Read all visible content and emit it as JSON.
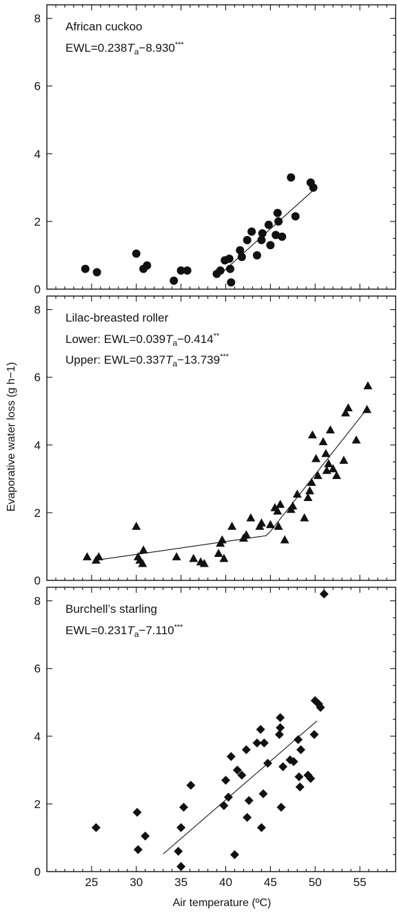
{
  "figure": {
    "xlabel": "Air temperature (ºC)",
    "ylabel": "Evaporative water loss (g h−1)"
  },
  "chart_data": [
    {
      "type": "scatter",
      "marker": "circle",
      "title": "African cuckoo",
      "annotations": [
        {
          "prefix": "EWL=0.238",
          "var": "T",
          "sub": "a",
          "suffix": "−8.930",
          "sig": "***"
        }
      ],
      "xlim": [
        20,
        59
      ],
      "ylim": [
        0,
        8.4
      ],
      "xticks": [
        25,
        30,
        35,
        40,
        45,
        50,
        55
      ],
      "yticks": [
        0,
        2,
        4,
        6,
        8
      ],
      "show_xticklabels": false,
      "points": [
        [
          24.3,
          0.6
        ],
        [
          25.6,
          0.5
        ],
        [
          30.0,
          1.05
        ],
        [
          30.8,
          0.6
        ],
        [
          31.2,
          0.7
        ],
        [
          34.2,
          0.25
        ],
        [
          35.0,
          0.55
        ],
        [
          35.7,
          0.55
        ],
        [
          39.0,
          0.45
        ],
        [
          39.4,
          0.55
        ],
        [
          39.9,
          0.85
        ],
        [
          40.4,
          0.9
        ],
        [
          40.5,
          0.6
        ],
        [
          40.6,
          0.2
        ],
        [
          41.6,
          1.15
        ],
        [
          41.8,
          0.95
        ],
        [
          42.4,
          1.45
        ],
        [
          42.9,
          1.7
        ],
        [
          43.5,
          1.0
        ],
        [
          44.0,
          1.45
        ],
        [
          44.1,
          1.65
        ],
        [
          44.8,
          1.9
        ],
        [
          45.0,
          1.3
        ],
        [
          45.6,
          1.6
        ],
        [
          45.8,
          2.25
        ],
        [
          45.9,
          2.0
        ],
        [
          46.3,
          1.55
        ],
        [
          47.3,
          3.3
        ],
        [
          47.8,
          2.15
        ],
        [
          49.5,
          3.15
        ],
        [
          49.8,
          3.0
        ]
      ],
      "fit_segments": [
        [
          [
            39.0,
            0.35
          ],
          [
            50.0,
            2.97
          ]
        ]
      ]
    },
    {
      "type": "scatter",
      "marker": "triangle",
      "title": "Lilac-breasted roller",
      "annotations": [
        {
          "prefix": "Lower: EWL=0.039",
          "var": "T",
          "sub": "a",
          "suffix": "−0.414",
          "sig": "**"
        },
        {
          "prefix": "Upper: EWL=0.337",
          "var": "T",
          "sub": "a",
          "suffix": "−13.739",
          "sig": "***"
        }
      ],
      "xlim": [
        20,
        59
      ],
      "ylim": [
        0,
        8.4
      ],
      "xticks": [
        25,
        30,
        35,
        40,
        45,
        50,
        55
      ],
      "yticks": [
        0,
        2,
        4,
        6,
        8
      ],
      "show_xticklabels": false,
      "points": [
        [
          24.5,
          0.7
        ],
        [
          25.5,
          0.6
        ],
        [
          25.8,
          0.7
        ],
        [
          30.0,
          1.6
        ],
        [
          30.2,
          0.7
        ],
        [
          30.4,
          0.6
        ],
        [
          30.7,
          0.5
        ],
        [
          30.8,
          0.9
        ],
        [
          34.5,
          0.7
        ],
        [
          36.4,
          0.65
        ],
        [
          37.2,
          0.55
        ],
        [
          37.6,
          0.5
        ],
        [
          39.2,
          0.8
        ],
        [
          39.4,
          1.1
        ],
        [
          39.6,
          1.2
        ],
        [
          39.8,
          0.65
        ],
        [
          40.7,
          1.6
        ],
        [
          42.0,
          1.25
        ],
        [
          42.3,
          1.35
        ],
        [
          42.8,
          1.85
        ],
        [
          43.8,
          1.6
        ],
        [
          44.0,
          1.7
        ],
        [
          45.0,
          1.65
        ],
        [
          45.5,
          2.15
        ],
        [
          45.8,
          2.05
        ],
        [
          45.9,
          1.6
        ],
        [
          46.1,
          2.25
        ],
        [
          46.6,
          1.2
        ],
        [
          47.3,
          2.1
        ],
        [
          47.5,
          2.2
        ],
        [
          48.0,
          2.55
        ],
        [
          48.8,
          1.85
        ],
        [
          49.2,
          2.45
        ],
        [
          49.4,
          2.65
        ],
        [
          49.6,
          2.9
        ],
        [
          49.7,
          4.3
        ],
        [
          50.1,
          3.6
        ],
        [
          50.3,
          3.1
        ],
        [
          50.9,
          4.1
        ],
        [
          51.2,
          3.75
        ],
        [
          51.3,
          3.25
        ],
        [
          51.5,
          3.45
        ],
        [
          51.7,
          4.45
        ],
        [
          52.0,
          3.3
        ],
        [
          52.4,
          3.1
        ],
        [
          53.2,
          3.55
        ],
        [
          53.4,
          4.95
        ],
        [
          53.7,
          5.1
        ],
        [
          54.6,
          4.15
        ],
        [
          55.8,
          5.05
        ],
        [
          55.9,
          5.75
        ]
      ],
      "fit_segments": [
        [
          [
            25.6,
            0.6
          ],
          [
            44.5,
            1.32
          ]
        ],
        [
          [
            44.5,
            1.32
          ],
          [
            45.0,
            1.45
          ],
          [
            55.8,
            5.07
          ]
        ]
      ]
    },
    {
      "type": "scatter",
      "marker": "diamond",
      "title": "Burchell’s starling",
      "annotations": [
        {
          "prefix": "EWL=0.231",
          "var": "T",
          "sub": "a",
          "suffix": "−7.110",
          "sig": "***"
        }
      ],
      "xlim": [
        20,
        59
      ],
      "ylim": [
        0,
        8.4
      ],
      "xticks": [
        25,
        30,
        35,
        40,
        45,
        50,
        55
      ],
      "yticks": [
        0,
        2,
        4,
        6,
        8
      ],
      "show_xticklabels": true,
      "points": [
        [
          25.5,
          1.3
        ],
        [
          30.1,
          1.75
        ],
        [
          30.2,
          0.65
        ],
        [
          31.0,
          1.05
        ],
        [
          34.7,
          0.6
        ],
        [
          35.0,
          1.3
        ],
        [
          35.0,
          0.15
        ],
        [
          35.3,
          1.9
        ],
        [
          36.1,
          2.55
        ],
        [
          39.8,
          1.95
        ],
        [
          40.0,
          2.7
        ],
        [
          40.3,
          2.2
        ],
        [
          40.6,
          3.4
        ],
        [
          41.0,
          0.5
        ],
        [
          41.3,
          3.0
        ],
        [
          41.8,
          2.85
        ],
        [
          42.3,
          3.6
        ],
        [
          42.4,
          1.6
        ],
        [
          42.6,
          2.1
        ],
        [
          43.5,
          3.8
        ],
        [
          43.9,
          4.2
        ],
        [
          44.0,
          1.3
        ],
        [
          44.2,
          2.3
        ],
        [
          44.3,
          3.8
        ],
        [
          44.7,
          3.2
        ],
        [
          46.0,
          4.05
        ],
        [
          46.1,
          4.25
        ],
        [
          46.1,
          4.55
        ],
        [
          46.2,
          1.9
        ],
        [
          46.4,
          3.1
        ],
        [
          47.2,
          3.3
        ],
        [
          47.6,
          3.25
        ],
        [
          48.1,
          3.9
        ],
        [
          48.2,
          2.8
        ],
        [
          48.3,
          2.5
        ],
        [
          48.4,
          3.6
        ],
        [
          49.2,
          2.85
        ],
        [
          49.5,
          2.75
        ],
        [
          49.9,
          4.05
        ],
        [
          50.0,
          5.05
        ],
        [
          50.4,
          4.95
        ],
        [
          50.6,
          4.85
        ],
        [
          51.0,
          8.2
        ]
      ],
      "fit_segments": [
        [
          [
            33.0,
            0.52
          ],
          [
            50.2,
            4.45
          ]
        ]
      ]
    }
  ]
}
